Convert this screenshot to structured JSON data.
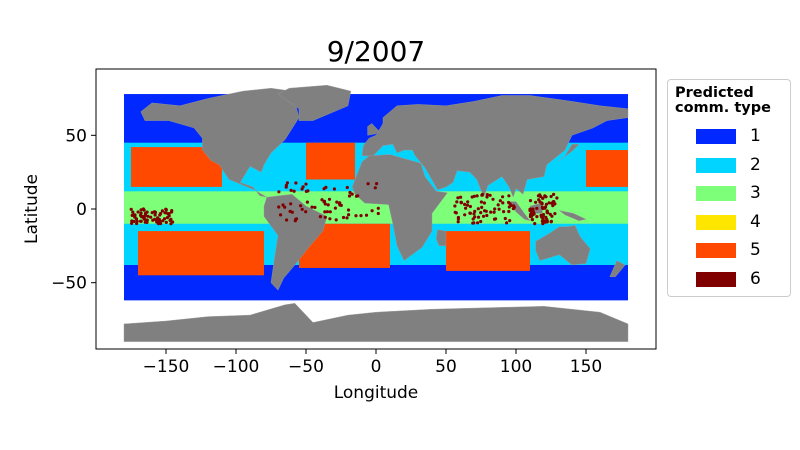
{
  "chart_data": {
    "type": "map",
    "title": "9/2007",
    "xlabel": "Longitude",
    "ylabel": "Latitude",
    "xlim": [
      -200,
      200
    ],
    "ylim": [
      -95,
      95
    ],
    "xticks": [
      -150,
      -100,
      -50,
      0,
      50,
      100,
      150
    ],
    "xtick_labels": [
      "−150",
      "−100",
      "−50",
      "0",
      "50",
      "100",
      "150"
    ],
    "yticks": [
      -50,
      0,
      50
    ],
    "ytick_labels": [
      "−50",
      "0",
      "50"
    ],
    "land_color": "#808080",
    "legend": {
      "title": "Predicted\ncomm. type",
      "placement": "right",
      "entries": [
        {
          "label": "1",
          "color": "#0028ff"
        },
        {
          "label": "2",
          "color": "#00d4ff"
        },
        {
          "label": "3",
          "color": "#7dff7a"
        },
        {
          "label": "4",
          "color": "#ffe600"
        },
        {
          "label": "5",
          "color": "#ff4800"
        },
        {
          "label": "6",
          "color": "#800000"
        }
      ]
    },
    "regions": [
      {
        "type": "1",
        "lon": [
          -180,
          180
        ],
        "lat": [
          -62,
          78
        ]
      },
      {
        "type": "2",
        "lon": [
          -180,
          180
        ],
        "lat": [
          -38,
          45
        ]
      },
      {
        "type": "3",
        "lon": [
          -180,
          180
        ],
        "lat": [
          -10,
          12
        ]
      },
      {
        "type": "5",
        "lon": [
          -170,
          -80
        ],
        "lat": [
          -45,
          -15
        ]
      },
      {
        "type": "5",
        "lon": [
          -175,
          -110
        ],
        "lat": [
          15,
          42
        ]
      },
      {
        "type": "5",
        "lon": [
          -55,
          10
        ],
        "lat": [
          -40,
          -10
        ]
      },
      {
        "type": "5",
        "lon": [
          -50,
          -15
        ],
        "lat": [
          20,
          45
        ]
      },
      {
        "type": "5",
        "lon": [
          50,
          110
        ],
        "lat": [
          -42,
          -15
        ]
      },
      {
        "type": "5",
        "lon": [
          150,
          180
        ],
        "lat": [
          15,
          40
        ]
      },
      {
        "type": "6",
        "lon": [
          -70,
          5
        ],
        "lat": [
          -8,
          18
        ]
      },
      {
        "type": "6",
        "lon": [
          55,
          100
        ],
        "lat": [
          -10,
          10
        ]
      },
      {
        "type": "6",
        "lon": [
          110,
          130
        ],
        "lat": [
          -10,
          10
        ]
      },
      {
        "type": "6",
        "lon": [
          -175,
          -145
        ],
        "lat": [
          -10,
          0
        ]
      }
    ]
  }
}
